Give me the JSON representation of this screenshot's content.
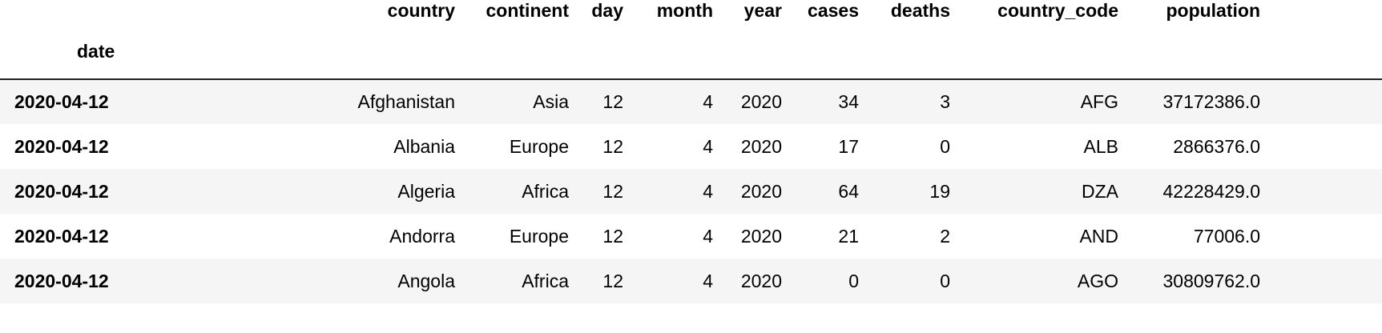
{
  "index_name": "date",
  "columns": [
    "country",
    "continent",
    "day",
    "month",
    "year",
    "cases",
    "deaths",
    "country_code",
    "population"
  ],
  "rows": [
    {
      "index": "2020-04-12",
      "cells": [
        "Afghanistan",
        "Asia",
        "12",
        "4",
        "2020",
        "34",
        "3",
        "AFG",
        "37172386.0"
      ]
    },
    {
      "index": "2020-04-12",
      "cells": [
        "Albania",
        "Europe",
        "12",
        "4",
        "2020",
        "17",
        "0",
        "ALB",
        "2866376.0"
      ]
    },
    {
      "index": "2020-04-12",
      "cells": [
        "Algeria",
        "Africa",
        "12",
        "4",
        "2020",
        "64",
        "19",
        "DZA",
        "42228429.0"
      ]
    },
    {
      "index": "2020-04-12",
      "cells": [
        "Andorra",
        "Europe",
        "12",
        "4",
        "2020",
        "21",
        "2",
        "AND",
        "77006.0"
      ]
    },
    {
      "index": "2020-04-12",
      "cells": [
        "Angola",
        "Africa",
        "12",
        "4",
        "2020",
        "0",
        "0",
        "AGO",
        "30809762.0"
      ]
    }
  ]
}
